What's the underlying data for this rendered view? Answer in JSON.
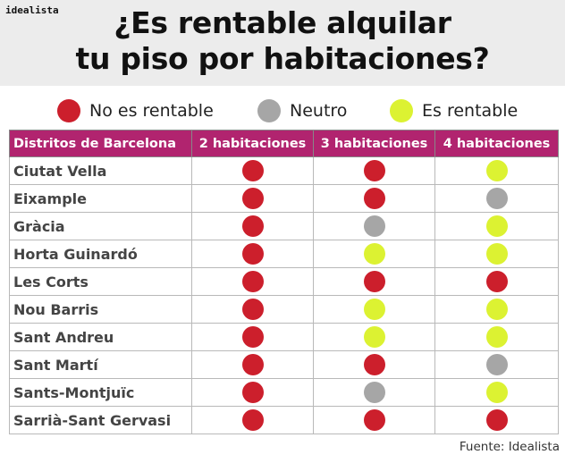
{
  "brand": "idealista",
  "title_line1": "¿Es rentable alquilar",
  "title_line2": "tu piso por habitaciones?",
  "colors": {
    "no_rentable": "#cc1f2c",
    "neutro": "#a6a6a6",
    "rentable": "#dcf232",
    "header_bg": "#b1246f"
  },
  "legend": [
    {
      "key": "no_rentable",
      "label": "No es rentable"
    },
    {
      "key": "neutro",
      "label": "Neutro"
    },
    {
      "key": "rentable",
      "label": "Es rentable"
    }
  ],
  "table": {
    "headers": [
      "Distritos de Barcelona",
      "2 habitaciones",
      "3 habitaciones",
      "4 habitaciones"
    ],
    "rows": [
      {
        "district": "Ciutat Vella",
        "values": [
          "no_rentable",
          "no_rentable",
          "rentable"
        ]
      },
      {
        "district": "Eixample",
        "values": [
          "no_rentable",
          "no_rentable",
          "neutro"
        ]
      },
      {
        "district": "Gràcia",
        "values": [
          "no_rentable",
          "neutro",
          "rentable"
        ]
      },
      {
        "district": "Horta Guinardó",
        "values": [
          "no_rentable",
          "rentable",
          "rentable"
        ]
      },
      {
        "district": "Les Corts",
        "values": [
          "no_rentable",
          "no_rentable",
          "no_rentable"
        ]
      },
      {
        "district": "Nou Barris",
        "values": [
          "no_rentable",
          "rentable",
          "rentable"
        ]
      },
      {
        "district": "Sant Andreu",
        "values": [
          "no_rentable",
          "rentable",
          "rentable"
        ]
      },
      {
        "district": "Sant Martí",
        "values": [
          "no_rentable",
          "no_rentable",
          "neutro"
        ]
      },
      {
        "district": "Sants-Montjuïc",
        "values": [
          "no_rentable",
          "neutro",
          "rentable"
        ]
      },
      {
        "district": "Sarrià-Sant Gervasi",
        "values": [
          "no_rentable",
          "no_rentable",
          "no_rentable"
        ]
      }
    ]
  },
  "source": "Fuente: Idealista"
}
